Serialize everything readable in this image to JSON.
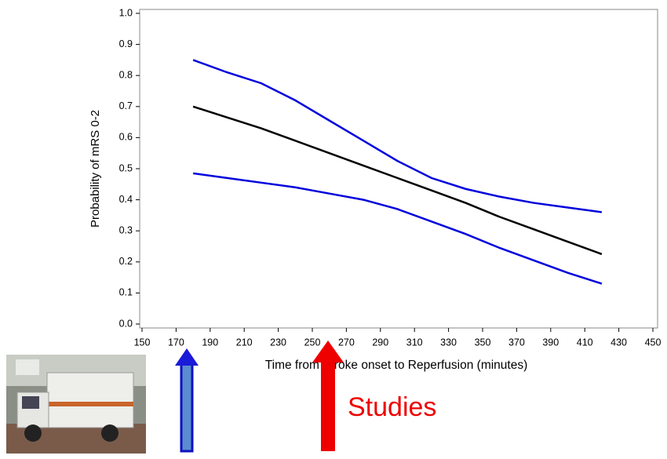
{
  "chart_data": {
    "type": "line",
    "x_label": "Time from Stroke onset to Reperfusion (minutes)",
    "y_label": "Probability of mRS 0-2",
    "annotation": "Studies",
    "x": [
      180,
      200,
      220,
      240,
      260,
      280,
      300,
      320,
      340,
      360,
      380,
      400,
      420
    ],
    "series": [
      {
        "color": "#0000dd",
        "values": [
          0.85,
          0.81,
          0.775,
          0.72,
          0.655,
          0.59,
          0.525,
          0.47,
          0.435,
          0.41,
          0.39,
          0.375,
          0.36
        ]
      },
      {
        "color": "#000000",
        "values": [
          0.7,
          0.665,
          0.63,
          0.59,
          0.55,
          0.51,
          0.47,
          0.43,
          0.39,
          0.345,
          0.305,
          0.265,
          0.225
        ]
      },
      {
        "color": "#0000dd",
        "values": [
          0.485,
          0.47,
          0.455,
          0.44,
          0.42,
          0.4,
          0.37,
          0.33,
          0.29,
          0.245,
          0.205,
          0.165,
          0.13
        ]
      }
    ],
    "xlim": [
      150,
      450
    ],
    "ylim": [
      0,
      1
    ],
    "xticks": [
      150,
      170,
      190,
      210,
      230,
      250,
      270,
      290,
      310,
      330,
      350,
      370,
      390,
      410,
      430,
      450
    ],
    "yticks": [
      {
        "value": 0,
        "label": "0.0"
      },
      0.1,
      0.2,
      0.3,
      0.4,
      0.5,
      0.6,
      0.7,
      0.8,
      0.9,
      {
        "value": 1,
        "label": "1.0"
      }
    ],
    "grid": false
  }
}
